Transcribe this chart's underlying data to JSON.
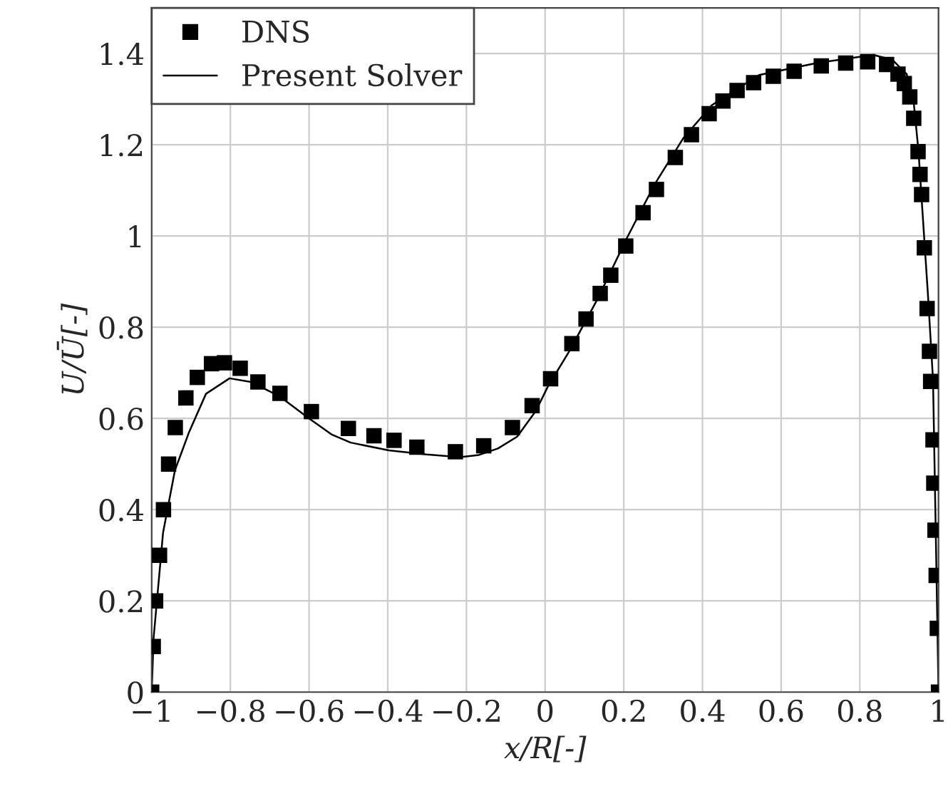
{
  "chart_data": {
    "type": "scatter",
    "xlabel": "x/R[-]",
    "ylabel": "U/Ū[-]",
    "xlim": [
      -1,
      1
    ],
    "ylim": [
      0,
      1.5
    ],
    "xticks": [
      {
        "value": -1,
        "label": "−1"
      },
      {
        "value": -0.8,
        "label": "−0.8"
      },
      {
        "value": -0.6,
        "label": "−0.6"
      },
      {
        "value": -0.4,
        "label": "−0.4"
      },
      {
        "value": -0.2,
        "label": "−0.2"
      },
      0,
      0.2,
      0.4,
      0.6,
      0.8,
      1
    ],
    "yticks": [
      0,
      0.2,
      0.4,
      0.6,
      0.8,
      1,
      1.2,
      1.4
    ],
    "grid": true,
    "legend": "top left",
    "series": [
      {
        "name": "DNS",
        "marker": "square",
        "color": "#000000",
        "x": [
          -1.0,
          -0.996,
          -0.99,
          -0.98,
          -0.97,
          -0.957,
          -0.94,
          -0.913,
          -0.884,
          -0.848,
          -0.815,
          -0.775,
          -0.73,
          -0.674,
          -0.594,
          -0.5,
          -0.435,
          -0.384,
          -0.326,
          -0.228,
          -0.156,
          -0.083,
          -0.033,
          0.014,
          0.068,
          0.104,
          0.14,
          0.167,
          0.205,
          0.249,
          0.283,
          0.331,
          0.372,
          0.417,
          0.452,
          0.488,
          0.53,
          0.58,
          0.633,
          0.702,
          0.764,
          0.82,
          0.868,
          0.897,
          0.913,
          0.927,
          0.937,
          0.948,
          0.953,
          0.957,
          0.964,
          0.971,
          0.977,
          0.98,
          0.986,
          0.988,
          0.991,
          0.994,
          0.997,
          1.0
        ],
        "values": [
          0.0,
          0.1,
          0.2,
          0.3,
          0.4,
          0.5,
          0.58,
          0.645,
          0.69,
          0.72,
          0.722,
          0.71,
          0.68,
          0.655,
          0.615,
          0.578,
          0.562,
          0.552,
          0.537,
          0.527,
          0.54,
          0.58,
          0.628,
          0.687,
          0.764,
          0.818,
          0.874,
          0.914,
          0.978,
          1.051,
          1.102,
          1.172,
          1.222,
          1.268,
          1.296,
          1.319,
          1.336,
          1.35,
          1.361,
          1.373,
          1.379,
          1.382,
          1.376,
          1.355,
          1.334,
          1.305,
          1.258,
          1.185,
          1.135,
          1.091,
          0.974,
          0.841,
          0.747,
          0.681,
          0.553,
          0.458,
          0.355,
          0.256,
          0.14,
          0.0
        ]
      },
      {
        "name": "Present Solver",
        "type": "line",
        "marker": "none",
        "line_style": "solid",
        "color": "#000000",
        "x": [
          -1.0,
          -0.995,
          -0.971,
          -0.941,
          -0.905,
          -0.862,
          -0.802,
          -0.748,
          -0.676,
          -0.603,
          -0.543,
          -0.494,
          -0.397,
          -0.301,
          -0.216,
          -0.168,
          -0.12,
          -0.071,
          -0.023,
          0.007,
          0.062,
          0.134,
          0.207,
          0.279,
          0.351,
          0.424,
          0.544,
          0.69,
          0.834,
          0.883,
          0.919,
          0.937,
          0.949,
          0.961,
          0.973,
          0.986,
          0.993,
          1.0
        ],
        "values": [
          0.0,
          0.12,
          0.35,
          0.486,
          0.57,
          0.654,
          0.688,
          0.68,
          0.649,
          0.602,
          0.565,
          0.547,
          0.53,
          0.521,
          0.515,
          0.52,
          0.534,
          0.56,
          0.617,
          0.67,
          0.748,
          0.863,
          0.994,
          1.114,
          1.214,
          1.287,
          1.353,
          1.379,
          1.397,
          1.386,
          1.355,
          1.292,
          1.187,
          1.03,
          0.873,
          0.685,
          0.35,
          0.0
        ]
      }
    ]
  }
}
